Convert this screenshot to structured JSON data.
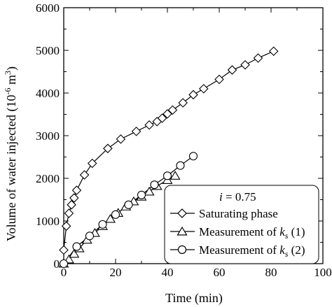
{
  "chart_data": {
    "type": "line",
    "title": "",
    "xlabel": "Time (min)",
    "ylabel": "Volume of water injected (10",
    "ylabel_sup": "-6",
    "ylabel_unit": " m",
    "ylabel_unit_sup": "3",
    "ylabel_close": ")",
    "xlim": [
      0,
      100
    ],
    "ylim": [
      0,
      6000
    ],
    "xticks": [
      0,
      20,
      40,
      60,
      80,
      100
    ],
    "yticks": [
      0,
      1000,
      2000,
      3000,
      4000,
      5000,
      6000
    ],
    "xtick_labels": [
      "0",
      "20",
      "40",
      "60",
      "80",
      "100"
    ],
    "ytick_labels": [
      "0",
      "1000",
      "2000",
      "3000",
      "4000",
      "5000",
      "6000"
    ],
    "grid": false,
    "legend": {
      "placement": "lower-right",
      "title_var": "i",
      "title_rest": " = 0.75",
      "entries": [
        {
          "text": "Saturating phase",
          "sub": "",
          "suffix": ""
        },
        {
          "text": "Measurement of ",
          "var": "k",
          "sub": "s",
          "suffix": " (1)"
        },
        {
          "text": "Measurement of ",
          "var": "k",
          "sub": "s",
          "suffix": " (2)"
        }
      ]
    },
    "series": [
      {
        "name": "Saturating phase",
        "marker": "diamond",
        "x": [
          0,
          1,
          2,
          3,
          4,
          5,
          8,
          11,
          17,
          22,
          28,
          33,
          36,
          38,
          40,
          42,
          46,
          50,
          54,
          60,
          65,
          70,
          75,
          81
        ],
        "y": [
          320,
          880,
          1180,
          1380,
          1540,
          1720,
          2080,
          2350,
          2700,
          2920,
          3100,
          3250,
          3330,
          3410,
          3510,
          3600,
          3770,
          3960,
          4100,
          4320,
          4540,
          4660,
          4820,
          4980
        ]
      },
      {
        "name": "Measurement of ks (1)",
        "marker": "triangle",
        "x": [
          0,
          2,
          4,
          6,
          9,
          12,
          15,
          18,
          21,
          24,
          27,
          30,
          33,
          36,
          40,
          43
        ],
        "y": [
          0,
          100,
          230,
          360,
          560,
          720,
          880,
          1050,
          1190,
          1340,
          1460,
          1570,
          1690,
          1820,
          1960,
          2060
        ]
      },
      {
        "name": "Measurement of ks (2)",
        "marker": "circle",
        "x": [
          0,
          5,
          10,
          15,
          20,
          25,
          30,
          35,
          40,
          45,
          50
        ],
        "y": [
          0,
          400,
          650,
          920,
          1150,
          1380,
          1610,
          1850,
          2060,
          2300,
          2520
        ]
      }
    ]
  }
}
